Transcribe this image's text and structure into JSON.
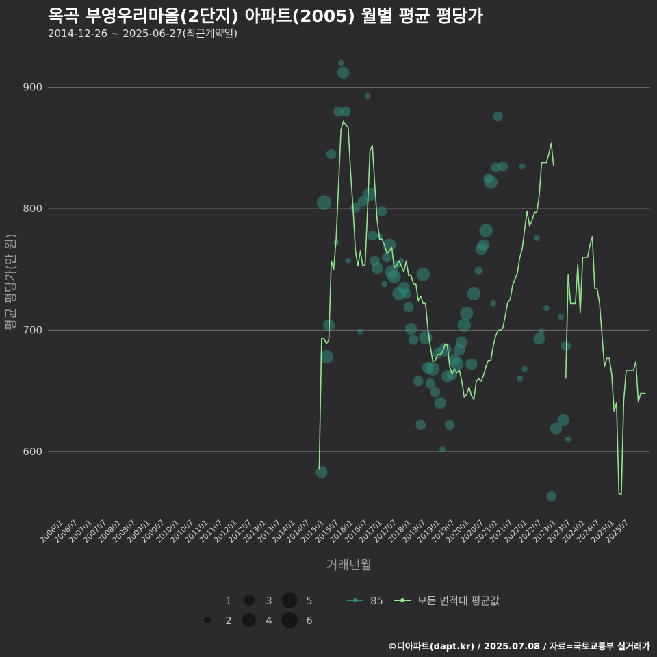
{
  "header": {
    "title": "옥곡 부영우리마을(2단지) 아파트(2005) 월별 평균 평당가",
    "subtitle": "2014-12-26 ~ 2025-06-27(최근계약일)"
  },
  "footer": {
    "credit": "©디아파트(dapt.kr) / 2025.07.08 / 자료=국토교통부 실거래가"
  },
  "colors": {
    "background": "#2b2b2d",
    "grid": "#6a6a6a",
    "line": "#90e88a",
    "bubble": "#2f8a7c"
  },
  "chart_data": {
    "type": "line",
    "title": "옥곡 부영우리마을(2단지) 아파트(2005) 월별 평균 평당가",
    "xlabel": "거래년월",
    "ylabel": "평균 평당가(만 원)",
    "ylim": [
      548,
      928
    ],
    "yticks": [
      600,
      700,
      800,
      900
    ],
    "x_ticks": [
      "200601",
      "200607",
      "200701",
      "200707",
      "200801",
      "200807",
      "200901",
      "200907",
      "201001",
      "201007",
      "201101",
      "201107",
      "201201",
      "201207",
      "201301",
      "201307",
      "201401",
      "201407",
      "201501",
      "201507",
      "201601",
      "201607",
      "201701",
      "201707",
      "201801",
      "201807",
      "201901",
      "201907",
      "202001",
      "202007",
      "202101",
      "202107",
      "202201",
      "202207",
      "202301",
      "202307",
      "202401",
      "202407",
      "202501",
      "202507"
    ],
    "x_range_months": [
      0,
      235
    ],
    "grid": true,
    "legend": {
      "sizes": [
        1,
        2,
        3,
        4,
        5,
        6
      ],
      "area_label": "85",
      "line_label": "모든 면적대 평균값"
    },
    "series": [
      {
        "name": "모든 면적대 평균값",
        "segments": [
          [
            [
              107,
              585
            ],
            [
              108,
              693
            ],
            [
              109,
              693
            ],
            [
              110,
              689
            ],
            [
              111,
              692
            ],
            [
              112,
              757
            ],
            [
              113,
              750
            ],
            [
              114,
              775
            ],
            [
              115,
              820
            ],
            [
              116,
              865
            ],
            [
              117,
              872
            ],
            [
              118,
              869
            ],
            [
              119,
              867
            ],
            [
              120,
              830
            ],
            [
              121,
              800
            ],
            [
              122,
              765
            ],
            [
              123,
              753
            ],
            [
              124,
              765
            ],
            [
              125,
              753
            ],
            [
              126,
              754
            ],
            [
              127,
              800
            ],
            [
              128,
              848
            ],
            [
              129,
              852
            ],
            [
              130,
              820
            ],
            [
              131,
              790
            ],
            [
              132,
              775
            ],
            [
              133,
              775
            ],
            [
              134,
              770
            ],
            [
              135,
              763
            ],
            [
              136,
              765
            ],
            [
              137,
              768
            ],
            [
              138,
              752
            ],
            [
              139,
              753
            ],
            [
              140,
              757
            ],
            [
              141,
              753
            ],
            [
              142,
              748
            ],
            [
              143,
              757
            ],
            [
              144,
              745
            ],
            [
              145,
              745
            ],
            [
              146,
              738
            ],
            [
              147,
              738
            ],
            [
              148,
              724
            ],
            [
              149,
              728
            ],
            [
              150,
              722
            ],
            [
              151,
              722
            ],
            [
              152,
              700
            ],
            [
              153,
              686
            ],
            [
              154,
              674
            ],
            [
              155,
              675
            ],
            [
              156,
              680
            ],
            [
              157,
              680
            ],
            [
              158,
              682
            ],
            [
              159,
              688
            ],
            [
              160,
              688
            ],
            [
              161,
              670
            ],
            [
              162,
              664
            ],
            [
              163,
              668
            ],
            [
              164,
              665
            ],
            [
              165,
              667
            ],
            [
              166,
              658
            ],
            [
              167,
              645
            ],
            [
              168,
              647
            ],
            [
              169,
              653
            ],
            [
              170,
              646
            ],
            [
              171,
              643
            ],
            [
              172,
              658
            ],
            [
              173,
              660
            ],
            [
              174,
              658
            ],
            [
              175,
              663
            ],
            [
              176,
              670
            ],
            [
              177,
              675
            ],
            [
              178,
              675
            ],
            [
              179,
              687
            ],
            [
              180,
              695
            ],
            [
              181,
              700
            ],
            [
              182,
              700
            ],
            [
              183,
              702
            ],
            [
              184,
              712
            ],
            [
              185,
              723
            ],
            [
              186,
              725
            ],
            [
              187,
              737
            ],
            [
              188,
              742
            ],
            [
              189,
              747
            ],
            [
              190,
              760
            ],
            [
              191,
              767
            ],
            [
              192,
              783
            ],
            [
              193,
              798
            ],
            [
              194,
              786
            ],
            [
              195,
              790
            ],
            [
              196,
              797
            ],
            [
              197,
              797
            ],
            [
              198,
              810
            ],
            [
              199,
              838
            ],
            [
              200,
              838
            ],
            [
              201,
              838
            ],
            [
              202,
              845
            ],
            [
              203,
              854
            ],
            [
              204,
              835
            ]
          ],
          [
            [
              209,
              660
            ],
            [
              210,
              746
            ],
            [
              211,
              722
            ],
            [
              212,
              722
            ],
            [
              213,
              722
            ],
            [
              214,
              754
            ],
            [
              215,
              714
            ],
            [
              216,
              760
            ],
            [
              217,
              760
            ],
            [
              218,
              760
            ],
            [
              219,
              770
            ],
            [
              220,
              777
            ],
            [
              221,
              734
            ],
            [
              222,
              734
            ],
            [
              223,
              722
            ],
            [
              224,
              696
            ],
            [
              225,
              670
            ],
            [
              226,
              677
            ],
            [
              227,
              677
            ],
            [
              228,
              664
            ],
            [
              229,
              633
            ],
            [
              230,
              640
            ],
            [
              231,
              565
            ],
            [
              232,
              565
            ],
            [
              233,
              642
            ],
            [
              234,
              667
            ],
            [
              235,
              667
            ],
            [
              236,
              667
            ],
            [
              237,
              667
            ],
            [
              238,
              674
            ],
            [
              239,
              641
            ],
            [
              240,
              648
            ],
            [
              241,
              648
            ],
            [
              242,
              648
            ]
          ]
        ]
      },
      {
        "name": "85",
        "bubbles": [
          [
            108,
            583,
            4
          ],
          [
            110,
            678,
            5
          ],
          [
            111,
            704,
            4
          ],
          [
            112,
            845,
            3
          ],
          [
            114,
            772,
            1
          ],
          [
            115,
            880,
            3
          ],
          [
            116,
            920,
            1
          ],
          [
            117,
            912,
            4
          ],
          [
            118,
            880,
            3
          ],
          [
            109,
            805,
            6
          ],
          [
            119,
            757,
            1
          ],
          [
            122,
            801,
            3
          ],
          [
            124,
            699,
            1
          ],
          [
            125,
            806,
            3
          ],
          [
            127,
            893,
            1
          ],
          [
            128,
            812,
            5
          ],
          [
            129,
            778,
            3
          ],
          [
            130,
            757,
            3
          ],
          [
            131,
            751,
            4
          ],
          [
            132,
            777,
            1
          ],
          [
            133,
            798,
            3
          ],
          [
            134,
            738,
            1
          ],
          [
            135,
            760,
            3
          ],
          [
            136,
            770,
            5
          ],
          [
            137,
            748,
            5
          ],
          [
            138,
            744,
            5
          ],
          [
            139,
            754,
            2
          ],
          [
            140,
            730,
            5
          ],
          [
            141,
            757,
            1
          ],
          [
            142,
            735,
            4
          ],
          [
            143,
            730,
            3
          ],
          [
            144,
            719,
            3
          ],
          [
            145,
            701,
            4
          ],
          [
            146,
            692,
            3
          ],
          [
            148,
            658,
            3
          ],
          [
            149,
            622,
            3
          ],
          [
            150,
            746,
            5
          ],
          [
            151,
            694,
            5
          ],
          [
            152,
            669,
            4
          ],
          [
            153,
            656,
            3
          ],
          [
            154,
            668,
            5
          ],
          [
            155,
            649,
            3
          ],
          [
            156,
            681,
            3
          ],
          [
            157,
            640,
            4
          ],
          [
            158,
            602,
            1
          ],
          [
            159,
            684,
            5
          ],
          [
            160,
            662,
            4
          ],
          [
            161,
            622,
            3
          ],
          [
            162,
            663,
            3
          ],
          [
            163,
            676,
            4
          ],
          [
            164,
            672,
            5
          ],
          [
            165,
            684,
            4
          ],
          [
            166,
            690,
            4
          ],
          [
            167,
            704,
            5
          ],
          [
            168,
            714,
            5
          ],
          [
            170,
            672,
            4
          ],
          [
            171,
            730,
            5
          ],
          [
            173,
            749,
            2
          ],
          [
            174,
            767,
            4
          ],
          [
            175,
            770,
            4
          ],
          [
            176,
            782,
            5
          ],
          [
            177,
            825,
            3
          ],
          [
            178,
            822,
            5
          ],
          [
            179,
            722,
            1
          ],
          [
            180,
            834,
            3
          ],
          [
            181,
            876,
            3
          ],
          [
            183,
            835,
            3
          ],
          [
            190,
            660,
            1
          ],
          [
            191,
            835,
            1
          ],
          [
            192,
            668,
            1
          ],
          [
            197,
            776,
            1
          ],
          [
            198,
            693,
            4
          ],
          [
            199,
            699,
            1
          ],
          [
            201,
            718,
            1
          ],
          [
            203,
            563,
            3
          ],
          [
            205,
            619,
            4
          ],
          [
            207,
            711,
            1
          ],
          [
            208,
            626,
            4
          ],
          [
            209,
            687,
            3
          ],
          [
            210,
            610,
            1
          ]
        ]
      }
    ]
  }
}
